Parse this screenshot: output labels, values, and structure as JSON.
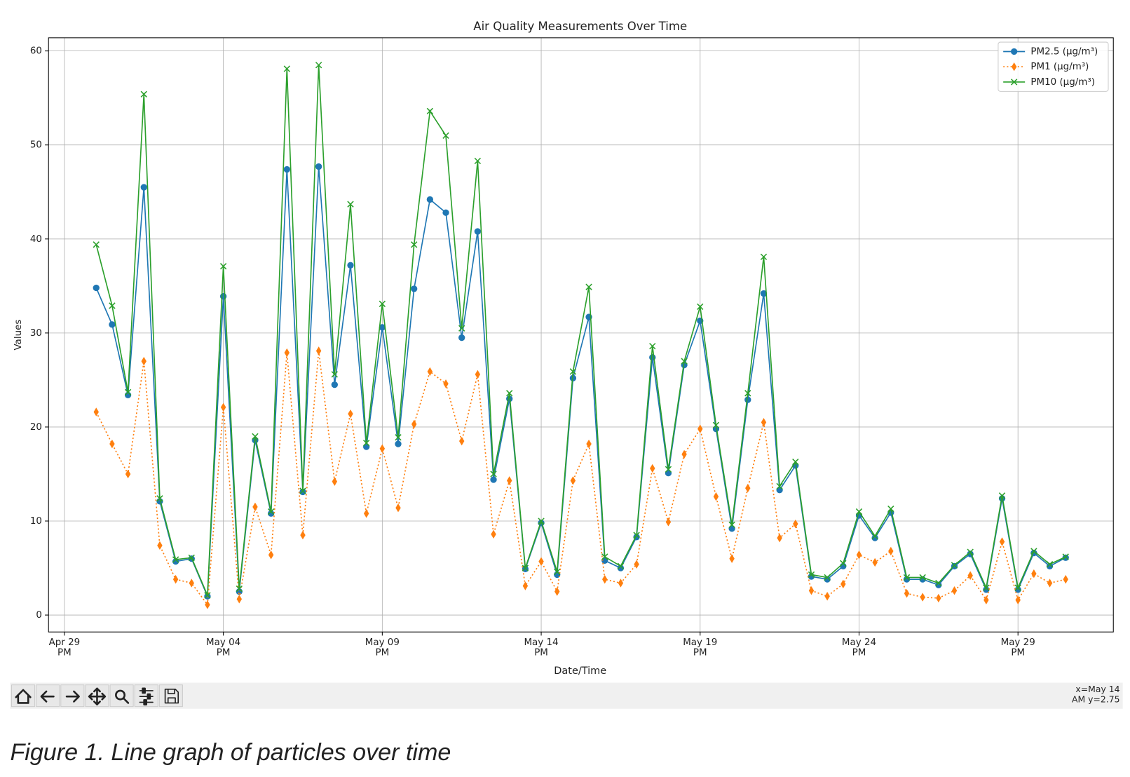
{
  "chart_data": {
    "type": "line",
    "title": "Air Quality Measurements Over Time",
    "x_label": "Date/Time",
    "y_label": "Values",
    "x": [
      "Apr 30 PM",
      "May 01 AM",
      "May 01 PM",
      "May 02 AM",
      "May 02 PM",
      "May 03 AM",
      "May 03 PM",
      "May 04 AM",
      "May 04 PM",
      "May 05 AM",
      "May 05 PM",
      "May 06 AM",
      "May 06 PM",
      "May 07 AM",
      "May 07 PM",
      "May 08 AM",
      "May 08 PM",
      "May 09 AM",
      "May 09 PM",
      "May 10 AM",
      "May 10 PM",
      "May 11 AM",
      "May 11 PM",
      "May 12 AM",
      "May 12 PM",
      "May 13 AM",
      "May 13 PM",
      "May 14 AM",
      "May 14 PM",
      "May 15 AM",
      "May 15 PM",
      "May 16 AM",
      "May 16 PM",
      "May 17 AM",
      "May 17 PM",
      "May 18 AM",
      "May 18 PM",
      "May 19 AM",
      "May 19 PM",
      "May 20 AM",
      "May 20 PM",
      "May 21 AM",
      "May 21 PM",
      "May 22 AM",
      "May 22 PM",
      "May 23 AM",
      "May 23 PM",
      "May 24 AM",
      "May 24 PM",
      "May 25 AM",
      "May 25 PM",
      "May 26 AM",
      "May 26 PM",
      "May 27 AM",
      "May 27 PM",
      "May 28 AM",
      "May 28 PM",
      "May 29 AM",
      "May 29 PM",
      "May 30 AM",
      "May 30 PM",
      "May 31 AM"
    ],
    "series": [
      {
        "name": "PM2.5 (µg/m³)",
        "color": "#1f77b4",
        "marker": "circle",
        "linestyle": "solid",
        "values": [
          34.8,
          30.9,
          23.4,
          45.5,
          12.1,
          5.7,
          6.0,
          2.0,
          33.9,
          2.5,
          18.6,
          10.8,
          47.4,
          13.1,
          47.7,
          24.5,
          37.2,
          17.9,
          30.6,
          18.2,
          34.7,
          44.2,
          42.8,
          29.5,
          40.8,
          14.4,
          23.0,
          4.9,
          9.8,
          4.3,
          25.2,
          31.7,
          5.8,
          5.0,
          8.3,
          27.4,
          15.1,
          26.6,
          31.3,
          19.8,
          9.2,
          22.9,
          34.2,
          13.3,
          15.9,
          4.1,
          3.8,
          5.2,
          10.6,
          8.2,
          10.9,
          3.8,
          3.8,
          3.2,
          5.2,
          6.5,
          2.7,
          12.4,
          2.7,
          6.6,
          5.2,
          6.1
        ]
      },
      {
        "name": "PM1 (µg/m³)",
        "color": "#ff7f0e",
        "marker": "thin_diamond",
        "linestyle": "dotted",
        "values": [
          21.6,
          18.2,
          15.0,
          27.0,
          7.4,
          3.8,
          3.4,
          1.1,
          22.1,
          1.7,
          11.5,
          6.4,
          27.9,
          8.5,
          28.1,
          14.2,
          21.4,
          10.8,
          17.7,
          11.4,
          20.3,
          25.9,
          24.6,
          18.5,
          25.6,
          8.6,
          14.3,
          3.1,
          5.7,
          2.5,
          14.3,
          18.2,
          3.8,
          3.4,
          5.4,
          15.6,
          9.9,
          17.1,
          19.8,
          12.6,
          6.0,
          13.5,
          20.5,
          8.2,
          9.7,
          2.6,
          2.0,
          3.3,
          6.4,
          5.6,
          6.8,
          2.3,
          1.9,
          1.8,
          2.6,
          4.2,
          1.6,
          7.8,
          1.6,
          4.4,
          3.4,
          3.8
        ]
      },
      {
        "name": "PM10 (µg/m³)",
        "color": "#2ca02c",
        "marker": "x",
        "linestyle": "solid",
        "values": [
          39.4,
          32.9,
          23.7,
          55.4,
          12.4,
          5.9,
          6.1,
          2.1,
          37.1,
          2.8,
          19.0,
          11.0,
          58.1,
          13.2,
          58.5,
          25.6,
          43.7,
          18.3,
          33.1,
          18.9,
          39.4,
          53.6,
          51.0,
          30.5,
          48.3,
          15.0,
          23.6,
          5.0,
          10.0,
          4.6,
          25.9,
          34.9,
          6.2,
          5.2,
          8.5,
          28.6,
          15.5,
          27.0,
          32.8,
          20.2,
          9.6,
          23.6,
          38.1,
          13.7,
          16.3,
          4.3,
          4.0,
          5.5,
          11.0,
          8.4,
          11.3,
          4.0,
          4.0,
          3.4,
          5.3,
          6.7,
          2.9,
          12.7,
          2.9,
          6.8,
          5.4,
          6.2
        ]
      }
    ],
    "xlim": [
      "Apr 29 AM",
      "Jun 01 PM"
    ],
    "xticks": [
      "Apr 29 PM",
      "May 04 PM",
      "May 09 PM",
      "May 14 PM",
      "May 19 PM",
      "May 24 PM",
      "May 29 PM"
    ],
    "ylim": [
      -1.8,
      61.4
    ],
    "yticks": [
      0,
      10,
      20,
      30,
      40,
      50,
      60
    ],
    "grid": true,
    "legend": "upper right"
  },
  "toolbar_status": "x=May 14 AM y=2.75",
  "caption": "Figure 1. Line graph of particles over time"
}
